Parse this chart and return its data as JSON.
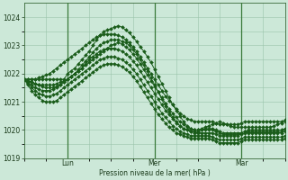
{
  "background_color": "#cce8d8",
  "grid_color": "#99c4aa",
  "line_color": "#1a5c1a",
  "marker": "D",
  "marker_size": 2.0,
  "ylabel": "Pression niveau de la mer( hPa )",
  "ylim": [
    1019.0,
    1024.5
  ],
  "yticks": [
    1019,
    1020,
    1021,
    1022,
    1023,
    1024
  ],
  "xtick_labels": [
    "Lun",
    "Mer",
    "Mar"
  ],
  "xtick_positions": [
    12,
    36,
    60
  ],
  "vline_positions": [
    12,
    36,
    60
  ],
  "total_points": 73,
  "series": [
    [
      1021.8,
      1021.8,
      1021.8,
      1021.8,
      1021.8,
      1021.8,
      1021.8,
      1021.8,
      1021.8,
      1021.8,
      1021.8,
      1021.8,
      1022.0,
      1022.1,
      1022.2,
      1022.35,
      1022.5,
      1022.65,
      1022.8,
      1023.0,
      1023.2,
      1023.35,
      1023.5,
      1023.55,
      1023.6,
      1023.65,
      1023.7,
      1023.65,
      1023.55,
      1023.45,
      1023.3,
      1023.15,
      1022.95,
      1022.8,
      1022.6,
      1022.4,
      1022.15,
      1021.9,
      1021.65,
      1021.4,
      1021.15,
      1020.9,
      1020.7,
      1020.5,
      1020.3,
      1020.15,
      1020.05,
      1020.0,
      1020.0,
      1020.05,
      1020.1,
      1020.15,
      1020.2,
      1020.25,
      1020.3,
      1020.25,
      1020.2,
      1020.15,
      1020.1,
      1020.1,
      1020.1,
      1020.1,
      1020.1,
      1020.1,
      1020.1,
      1020.1,
      1020.1,
      1020.1,
      1020.1,
      1020.15,
      1020.2,
      1020.25,
      1020.3
    ],
    [
      1021.8,
      1021.75,
      1021.7,
      1021.65,
      1021.6,
      1021.6,
      1021.6,
      1021.6,
      1021.6,
      1021.65,
      1021.7,
      1021.75,
      1021.8,
      1021.9,
      1022.0,
      1022.15,
      1022.3,
      1022.45,
      1022.6,
      1022.75,
      1022.9,
      1023.0,
      1023.1,
      1023.15,
      1023.2,
      1023.2,
      1023.2,
      1023.15,
      1023.1,
      1023.0,
      1022.85,
      1022.7,
      1022.5,
      1022.3,
      1022.1,
      1021.85,
      1021.6,
      1021.35,
      1021.1,
      1020.85,
      1020.65,
      1020.45,
      1020.3,
      1020.15,
      1020.05,
      1020.0,
      1019.95,
      1019.95,
      1019.95,
      1020.0,
      1020.05,
      1020.05,
      1020.05,
      1020.0,
      1019.95,
      1019.9,
      1019.9,
      1019.9,
      1019.9,
      1019.9,
      1019.9,
      1019.95,
      1020.0,
      1020.0,
      1020.0,
      1020.0,
      1020.0,
      1020.0,
      1020.0,
      1020.0,
      1020.0,
      1020.0,
      1020.05
    ],
    [
      1021.8,
      1021.7,
      1021.6,
      1021.5,
      1021.45,
      1021.4,
      1021.4,
      1021.4,
      1021.45,
      1021.5,
      1021.6,
      1021.7,
      1021.8,
      1021.9,
      1022.0,
      1022.1,
      1022.2,
      1022.35,
      1022.5,
      1022.6,
      1022.7,
      1022.8,
      1022.85,
      1022.9,
      1022.9,
      1022.9,
      1022.85,
      1022.8,
      1022.7,
      1022.6,
      1022.45,
      1022.3,
      1022.1,
      1021.9,
      1021.7,
      1021.5,
      1021.3,
      1021.1,
      1020.9,
      1020.7,
      1020.55,
      1020.4,
      1020.25,
      1020.15,
      1020.05,
      1020.0,
      1019.95,
      1019.9,
      1019.9,
      1019.9,
      1019.9,
      1019.9,
      1019.9,
      1019.85,
      1019.8,
      1019.8,
      1019.8,
      1019.8,
      1019.8,
      1019.8,
      1019.85,
      1019.9,
      1019.9,
      1019.9,
      1019.9,
      1019.9,
      1019.9,
      1019.9,
      1019.9,
      1019.9,
      1019.9,
      1019.9,
      1019.95
    ],
    [
      1021.8,
      1021.65,
      1021.5,
      1021.4,
      1021.3,
      1021.25,
      1021.2,
      1021.2,
      1021.25,
      1021.3,
      1021.4,
      1021.5,
      1021.6,
      1021.7,
      1021.8,
      1021.9,
      1022.0,
      1022.1,
      1022.2,
      1022.3,
      1022.4,
      1022.5,
      1022.55,
      1022.6,
      1022.6,
      1022.6,
      1022.55,
      1022.5,
      1022.4,
      1022.3,
      1022.15,
      1022.0,
      1021.8,
      1021.6,
      1021.4,
      1021.2,
      1021.0,
      1020.8,
      1020.6,
      1020.45,
      1020.3,
      1020.15,
      1020.05,
      1019.95,
      1019.9,
      1019.85,
      1019.8,
      1019.8,
      1019.8,
      1019.8,
      1019.8,
      1019.8,
      1019.75,
      1019.7,
      1019.65,
      1019.65,
      1019.65,
      1019.65,
      1019.65,
      1019.65,
      1019.7,
      1019.75,
      1019.75,
      1019.75,
      1019.75,
      1019.75,
      1019.75,
      1019.75,
      1019.75,
      1019.75,
      1019.75,
      1019.75,
      1019.8
    ],
    [
      1021.8,
      1021.6,
      1021.4,
      1021.25,
      1021.15,
      1021.05,
      1021.0,
      1021.0,
      1021.0,
      1021.05,
      1021.15,
      1021.25,
      1021.35,
      1021.45,
      1021.55,
      1021.65,
      1021.75,
      1021.85,
      1021.95,
      1022.05,
      1022.15,
      1022.25,
      1022.3,
      1022.35,
      1022.35,
      1022.35,
      1022.3,
      1022.25,
      1022.15,
      1022.05,
      1021.9,
      1021.75,
      1021.55,
      1021.35,
      1021.15,
      1020.95,
      1020.75,
      1020.55,
      1020.4,
      1020.25,
      1020.1,
      1020.0,
      1019.9,
      1019.85,
      1019.8,
      1019.75,
      1019.7,
      1019.7,
      1019.7,
      1019.7,
      1019.7,
      1019.7,
      1019.65,
      1019.6,
      1019.55,
      1019.55,
      1019.55,
      1019.55,
      1019.55,
      1019.55,
      1019.6,
      1019.65,
      1019.65,
      1019.65,
      1019.65,
      1019.65,
      1019.65,
      1019.65,
      1019.65,
      1019.65,
      1019.65,
      1019.65,
      1019.7
    ],
    [
      1021.8,
      1021.75,
      1021.7,
      1021.65,
      1021.6,
      1021.55,
      1021.5,
      1021.5,
      1021.5,
      1021.55,
      1021.6,
      1021.7,
      1021.8,
      1021.9,
      1022.0,
      1022.1,
      1022.2,
      1022.3,
      1022.4,
      1022.5,
      1022.6,
      1022.7,
      1022.8,
      1022.9,
      1023.0,
      1023.05,
      1023.1,
      1023.05,
      1022.95,
      1022.85,
      1022.7,
      1022.55,
      1022.35,
      1022.15,
      1021.95,
      1021.75,
      1021.55,
      1021.35,
      1021.15,
      1020.95,
      1020.75,
      1020.6,
      1020.45,
      1020.3,
      1020.2,
      1020.1,
      1020.05,
      1020.0,
      1020.0,
      1020.0,
      1020.0,
      1020.0,
      1020.0,
      1019.95,
      1019.9,
      1019.85,
      1019.85,
      1019.85,
      1019.85,
      1019.85,
      1019.9,
      1019.95,
      1019.95,
      1019.95,
      1019.95,
      1019.95,
      1019.95,
      1019.95,
      1019.95,
      1019.95,
      1019.95,
      1019.95,
      1020.0
    ],
    [
      1021.8,
      1021.8,
      1021.8,
      1021.8,
      1021.85,
      1021.9,
      1021.95,
      1022.0,
      1022.1,
      1022.2,
      1022.3,
      1022.4,
      1022.5,
      1022.6,
      1022.7,
      1022.8,
      1022.9,
      1023.0,
      1023.1,
      1023.2,
      1023.3,
      1023.35,
      1023.4,
      1023.4,
      1023.4,
      1023.4,
      1023.35,
      1023.3,
      1023.2,
      1023.1,
      1022.95,
      1022.8,
      1022.6,
      1022.4,
      1022.2,
      1022.0,
      1021.8,
      1021.6,
      1021.4,
      1021.2,
      1021.05,
      1020.9,
      1020.75,
      1020.6,
      1020.5,
      1020.4,
      1020.35,
      1020.3,
      1020.3,
      1020.3,
      1020.3,
      1020.3,
      1020.3,
      1020.25,
      1020.2,
      1020.2,
      1020.2,
      1020.2,
      1020.2,
      1020.2,
      1020.25,
      1020.3,
      1020.3,
      1020.3,
      1020.3,
      1020.3,
      1020.3,
      1020.3,
      1020.3,
      1020.3,
      1020.3,
      1020.3,
      1020.35
    ]
  ]
}
